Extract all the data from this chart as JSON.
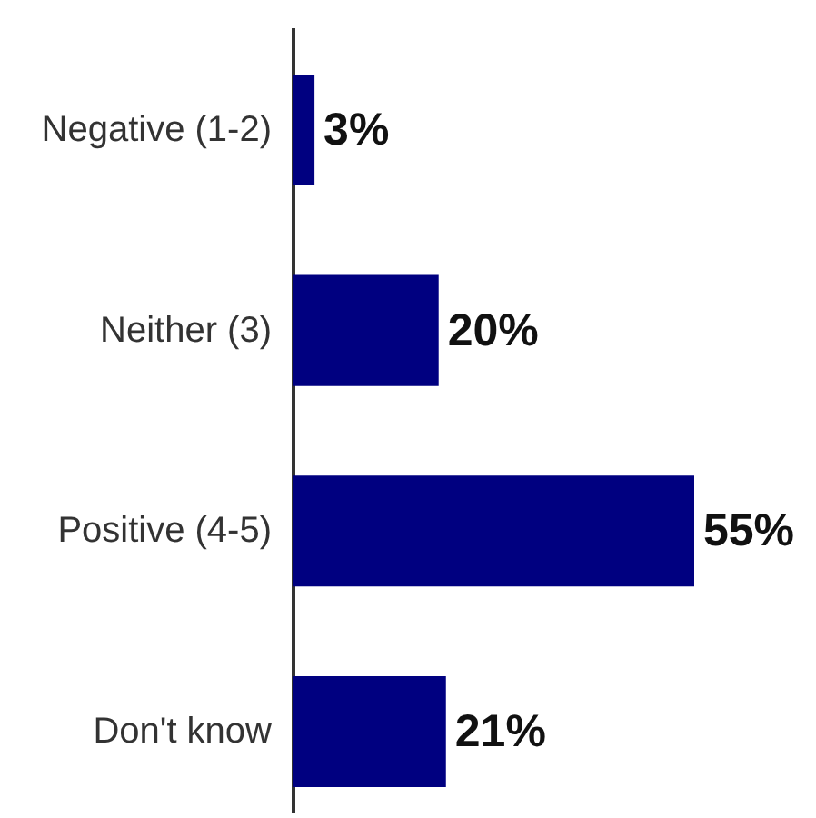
{
  "chart_data": {
    "type": "bar",
    "orientation": "horizontal",
    "categories": [
      "Negative (1-2)",
      "Neither (3)",
      "Positive (4-5)",
      "Don't know"
    ],
    "values": [
      3,
      20,
      55,
      21
    ],
    "value_labels": [
      "3%",
      "20%",
      "55%",
      "21%"
    ],
    "color": "#000080"
  }
}
